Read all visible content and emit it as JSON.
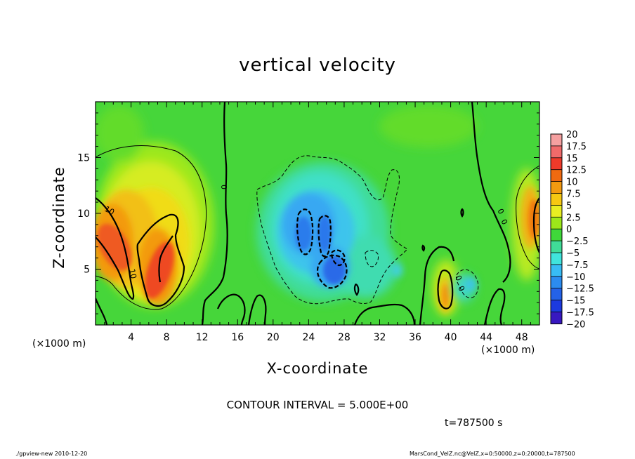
{
  "chart_data": {
    "type": "heatmap",
    "title": "vertical velocity",
    "xlabel": "X-coordinate",
    "ylabel": "Z-coordinate",
    "x_unit": "(×1000 m)",
    "x_ticks": [
      4,
      8,
      12,
      16,
      20,
      24,
      28,
      32,
      36,
      40,
      44,
      48
    ],
    "y_ticks": [
      5,
      10,
      15
    ],
    "xlim": [
      0,
      50
    ],
    "ylim": [
      0,
      20
    ],
    "contour_interval": "CONTOUR INTERVAL = 5.000E+00",
    "contour_labels": [
      "10",
      "10",
      "0",
      "0",
      "0",
      "0",
      "0"
    ],
    "time": "t=787500 s",
    "colorbar": {
      "labels": [
        "20",
        "17.5",
        "15",
        "12.5",
        "10",
        "7.5",
        "5",
        "2.5",
        "0",
        "−2.5",
        "−5",
        "−7.5",
        "−10",
        "−12.5",
        "−15",
        "−17.5",
        "−20"
      ],
      "colors": [
        "#f5a0a0",
        "#f06a6a",
        "#ee3a2a",
        "#f06a10",
        "#f39a10",
        "#f6c812",
        "#e8ee22",
        "#9ce81a",
        "#3fd83a",
        "#40dc98",
        "#40e4dc",
        "#38bcf4",
        "#2c8cf0",
        "#2462e8",
        "#1c3ae0",
        "#3818c0",
        "#7a20c0"
      ]
    },
    "features": [
      {
        "kind": "updraft",
        "x": 6,
        "z": 5,
        "peak": 12.5
      },
      {
        "kind": "updraft",
        "x": 2,
        "z": 8,
        "peak": 12.5
      },
      {
        "kind": "updraft",
        "x": 49,
        "z": 10,
        "peak": 12.5
      },
      {
        "kind": "updraft",
        "x": 39.5,
        "z": 3,
        "peak": 10
      },
      {
        "kind": "downdraft",
        "x": 23.5,
        "z": 8,
        "peak": -12.5
      },
      {
        "kind": "downdraft",
        "x": 26,
        "z": 5,
        "peak": -12.5
      }
    ]
  },
  "footer": {
    "left": "./gpview-new   2010-12-20",
    "right": "MarsCond_VelZ.nc@VelZ,x=0:50000,z=0:20000,t=787500"
  }
}
